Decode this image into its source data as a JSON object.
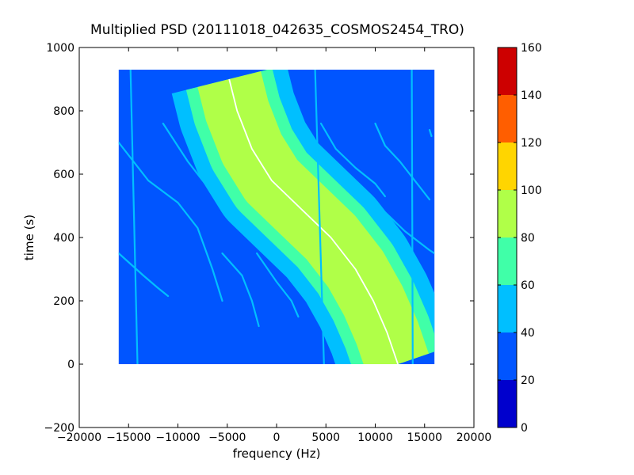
{
  "figure": {
    "title": "Multiplied PSD (20111018_042635_COSMOS2454_TRO)"
  },
  "chart_data": {
    "type": "heatmap",
    "title": "Multiplied PSD (20111018_042635_COSMOS2454_TRO)",
    "xlabel": "frequency (Hz)",
    "ylabel": "time (s)",
    "xlim": [
      -20000,
      20000
    ],
    "ylim": [
      -200,
      1000
    ],
    "xticks": [
      -20000,
      -15000,
      -10000,
      -5000,
      0,
      5000,
      10000,
      15000,
      20000
    ],
    "xtick_labels": [
      "−20000",
      "−15000",
      "−10000",
      "−5000",
      "0",
      "5000",
      "10000",
      "15000",
      "20000"
    ],
    "yticks": [
      -200,
      0,
      200,
      400,
      600,
      800,
      1000
    ],
    "ytick_labels": [
      "−200",
      "0",
      "200",
      "400",
      "600",
      "800",
      "1000"
    ],
    "data_extent": {
      "x": [
        -16000,
        16000
      ],
      "y": [
        0,
        930
      ]
    },
    "background_level": 30,
    "colorbar": {
      "levels": [
        0,
        20,
        40,
        60,
        80,
        100,
        120,
        140,
        160
      ],
      "tick_labels": [
        "0",
        "20",
        "40",
        "60",
        "80",
        "100",
        "120",
        "140",
        "160"
      ],
      "colors": [
        "#0000cd",
        "#0055ff",
        "#00bfff",
        "#40ffa8",
        "#b0ff48",
        "#ffd500",
        "#ff5e00",
        "#cd0000"
      ]
    },
    "traces": [
      {
        "name": "main-signal",
        "level": 80,
        "points": [
          [
            -4800,
            900
          ],
          [
            -4000,
            800
          ],
          [
            -2500,
            680
          ],
          [
            -500,
            580
          ],
          [
            2500,
            490
          ],
          [
            5500,
            400
          ],
          [
            8000,
            300
          ],
          [
            9800,
            200
          ],
          [
            11200,
            100
          ],
          [
            12300,
            0
          ]
        ],
        "envelope": [
          {
            "level": 50,
            "halfwidth": 6000
          },
          {
            "level": 60,
            "halfwidth": 4500
          },
          {
            "level": 80,
            "halfwidth": 3300
          }
        ],
        "peak_level": 100
      },
      {
        "name": "faint-line-1",
        "level": 55,
        "points": [
          [
            -16000,
            700
          ],
          [
            -13000,
            580
          ],
          [
            -10000,
            510
          ],
          [
            -8000,
            430
          ],
          [
            -6500,
            300
          ],
          [
            -5500,
            200
          ]
        ]
      },
      {
        "name": "faint-line-2",
        "level": 55,
        "points": [
          [
            -11500,
            760
          ],
          [
            -9000,
            640
          ],
          [
            -5500,
            500
          ],
          [
            -3000,
            450
          ],
          [
            -1500,
            390
          ]
        ]
      },
      {
        "name": "faint-line-3",
        "level": 55,
        "points": [
          [
            -16000,
            350
          ],
          [
            -13500,
            280
          ],
          [
            -12000,
            240
          ],
          [
            -11000,
            215
          ]
        ]
      },
      {
        "name": "faint-line-4",
        "level": 55,
        "points": [
          [
            -5500,
            350
          ],
          [
            -3500,
            280
          ],
          [
            -2500,
            200
          ],
          [
            -1800,
            120
          ]
        ]
      },
      {
        "name": "faint-line-5",
        "level": 55,
        "points": [
          [
            4500,
            760
          ],
          [
            6000,
            680
          ],
          [
            8000,
            620
          ],
          [
            10000,
            570
          ],
          [
            11000,
            530
          ]
        ]
      },
      {
        "name": "faint-line-6",
        "level": 55,
        "points": [
          [
            10000,
            760
          ],
          [
            11000,
            690
          ],
          [
            12500,
            640
          ],
          [
            14000,
            580
          ],
          [
            15500,
            520
          ]
        ]
      },
      {
        "name": "faint-line-7",
        "level": 55,
        "points": [
          [
            11000,
            480
          ],
          [
            13000,
            420
          ],
          [
            15500,
            360
          ],
          [
            16000,
            350
          ]
        ]
      },
      {
        "name": "faint-line-8",
        "level": 55,
        "points": [
          [
            -2000,
            350
          ],
          [
            0,
            260
          ],
          [
            1500,
            200
          ],
          [
            2200,
            150
          ]
        ]
      },
      {
        "name": "vertical-line-1",
        "level": 50,
        "points": [
          [
            -14800,
            930
          ],
          [
            -14100,
            0
          ]
        ]
      },
      {
        "name": "vertical-line-2",
        "level": 45,
        "points": [
          [
            3900,
            930
          ],
          [
            4800,
            0
          ]
        ]
      },
      {
        "name": "vertical-line-3",
        "level": 45,
        "points": [
          [
            13700,
            930
          ],
          [
            13800,
            0
          ]
        ]
      },
      {
        "name": "short-mark",
        "level": 55,
        "points": [
          [
            15500,
            740
          ],
          [
            15700,
            720
          ]
        ]
      }
    ]
  }
}
